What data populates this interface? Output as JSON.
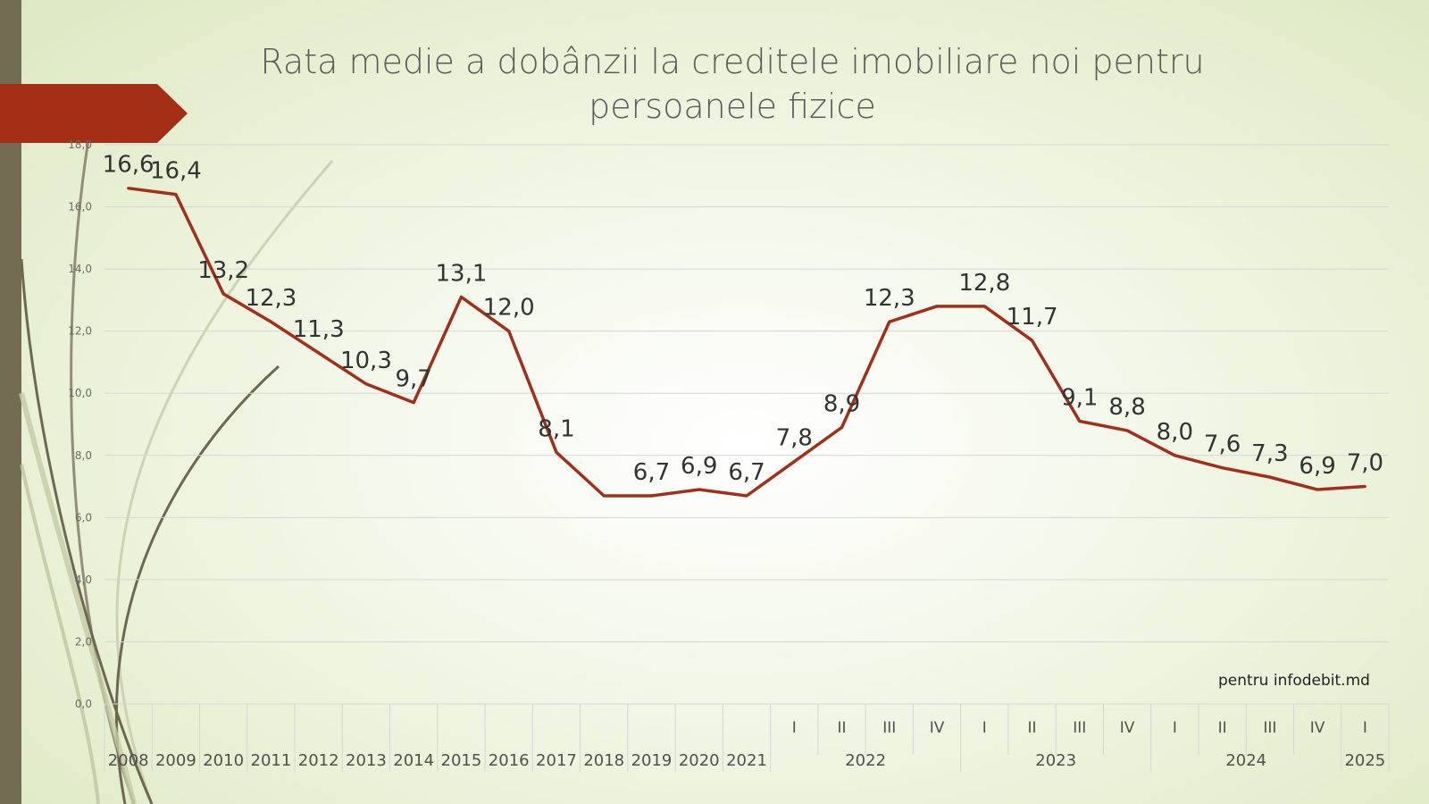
{
  "title": {
    "line1": "Rata medie a dobânzii la creditele imobiliare noi pentru",
    "line2": "persoanele fizice"
  },
  "credit": "pentru infodebit.md",
  "colors": {
    "line": "#a0301a",
    "accent_arrow": "#a32e14",
    "side_bar": "#736c53",
    "grid": "#d6d6d6",
    "text": "#404040"
  },
  "chart_data": {
    "type": "line",
    "title": "Rata medie a dobânzii la creditele imobiliare noi pentru persoanele fizice",
    "ylim": [
      0,
      18
    ],
    "yticks": [
      "0,0",
      "2,0",
      "4,0",
      "6,0",
      "8,0",
      "10,0",
      "12,0",
      "14,0",
      "16,0",
      "18,0"
    ],
    "grid": true,
    "categories": [
      {
        "top": "",
        "bottom": "2008"
      },
      {
        "top": "",
        "bottom": "2009"
      },
      {
        "top": "",
        "bottom": "2010"
      },
      {
        "top": "",
        "bottom": "2011"
      },
      {
        "top": "",
        "bottom": "2012"
      },
      {
        "top": "",
        "bottom": "2013"
      },
      {
        "top": "",
        "bottom": "2014"
      },
      {
        "top": "",
        "bottom": "2015"
      },
      {
        "top": "",
        "bottom": "2016"
      },
      {
        "top": "",
        "bottom": "2017"
      },
      {
        "top": "",
        "bottom": "2018"
      },
      {
        "top": "",
        "bottom": "2019"
      },
      {
        "top": "",
        "bottom": "2020"
      },
      {
        "top": "",
        "bottom": "2021"
      },
      {
        "top": "I",
        "bottom": ""
      },
      {
        "top": "II",
        "bottom": ""
      },
      {
        "top": "III",
        "bottom": ""
      },
      {
        "top": "IV",
        "bottom": ""
      },
      {
        "top": "I",
        "bottom": ""
      },
      {
        "top": "II",
        "bottom": ""
      },
      {
        "top": "III",
        "bottom": ""
      },
      {
        "top": "IV",
        "bottom": ""
      },
      {
        "top": "I",
        "bottom": ""
      },
      {
        "top": "II",
        "bottom": ""
      },
      {
        "top": "III",
        "bottom": ""
      },
      {
        "top": "IV",
        "bottom": ""
      },
      {
        "top": "I",
        "bottom": ""
      }
    ],
    "groups": [
      {
        "label": "2022",
        "start": 14,
        "end": 17
      },
      {
        "label": "2023",
        "start": 18,
        "end": 21
      },
      {
        "label": "2024",
        "start": 22,
        "end": 25
      },
      {
        "label": "2025",
        "start": 26,
        "end": 26
      }
    ],
    "values": [
      16.6,
      16.4,
      13.2,
      12.3,
      11.3,
      10.3,
      9.7,
      13.1,
      12.0,
      8.1,
      6.7,
      6.7,
      6.9,
      6.7,
      7.8,
      8.9,
      12.3,
      12.8,
      12.8,
      11.7,
      9.1,
      8.8,
      8.0,
      7.6,
      7.3,
      6.9,
      7.0
    ],
    "data_labels": [
      "16,6",
      "16,4",
      "13,2",
      "12,3",
      "11,3",
      "10,3",
      "9,7",
      "13,1",
      "12,0",
      "8,1",
      "",
      "6,7",
      "6,9",
      "6,7",
      "7,8",
      "8,9",
      "12,3",
      "",
      "12,8",
      "11,7",
      "9,1",
      "8,8",
      "8,0",
      "7,6",
      "7,3",
      "6,9",
      "7,0"
    ]
  }
}
